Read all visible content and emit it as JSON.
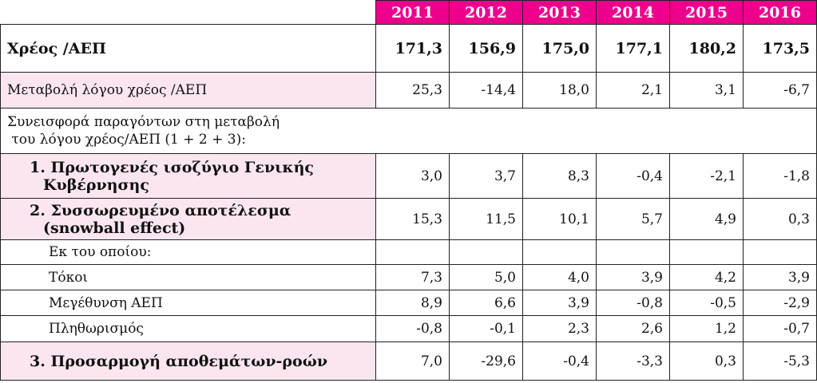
{
  "years": [
    "2011",
    "2012",
    "2013",
    "2014",
    "2015",
    "2016"
  ],
  "rows": [
    {
      "label": "Χρέος /ΑΕΠ",
      "values": [
        "171,3",
        "156,9",
        "175,0",
        "177,1",
        "180,2",
        "173,5"
      ]
    },
    {
      "label": "Μεταβολή λόγου χρέος /ΑΕΠ",
      "values": [
        "25,3",
        "-14,4",
        "18,0",
        "2,1",
        "3,1",
        "-6,7"
      ]
    },
    {
      "label_line1": "Συνεισφορά παραγόντων στη μεταβολή",
      "label_line2": " του λόγου χρέος/ΑΕΠ (1 + 2 + 3):"
    },
    {
      "label_line1": "1. Πρωτογενές ισοζύγιο Γενικής",
      "label_line2": "Κυβέρνησης",
      "values": [
        "3,0",
        "3,7",
        "8,3",
        "-0,4",
        "-2,1",
        "-1,8"
      ]
    },
    {
      "label_line1": "2. Συσσωρευμένο αποτέλεσμα",
      "label_line2": "(snowball effect)",
      "values": [
        "15,3",
        "11,5",
        "10,1",
        "5,7",
        "4,9",
        "0,3"
      ]
    },
    {
      "label": "Εκ του οποίου:"
    },
    {
      "label": "Τόκοι",
      "values": [
        "7,3",
        "5,0",
        "4,0",
        "3,9",
        "4,2",
        "3,9"
      ]
    },
    {
      "label": "Μεγέθυνση ΑΕΠ",
      "values": [
        "8,9",
        "6,6",
        "3,9",
        "-0,8",
        "-0,5",
        "-2,9"
      ]
    },
    {
      "label": "Πληθωρισμός",
      "values": [
        "-0,8",
        "-0,1",
        "2,3",
        "2,6",
        "1,2",
        "-0,7"
      ]
    },
    {
      "label": "3. Προσαρμογή αποθεμάτων-ροών",
      "values": [
        "7,0",
        "-29,6",
        "-0,4",
        "-3,3",
        "0,3",
        "-5,3"
      ]
    }
  ]
}
